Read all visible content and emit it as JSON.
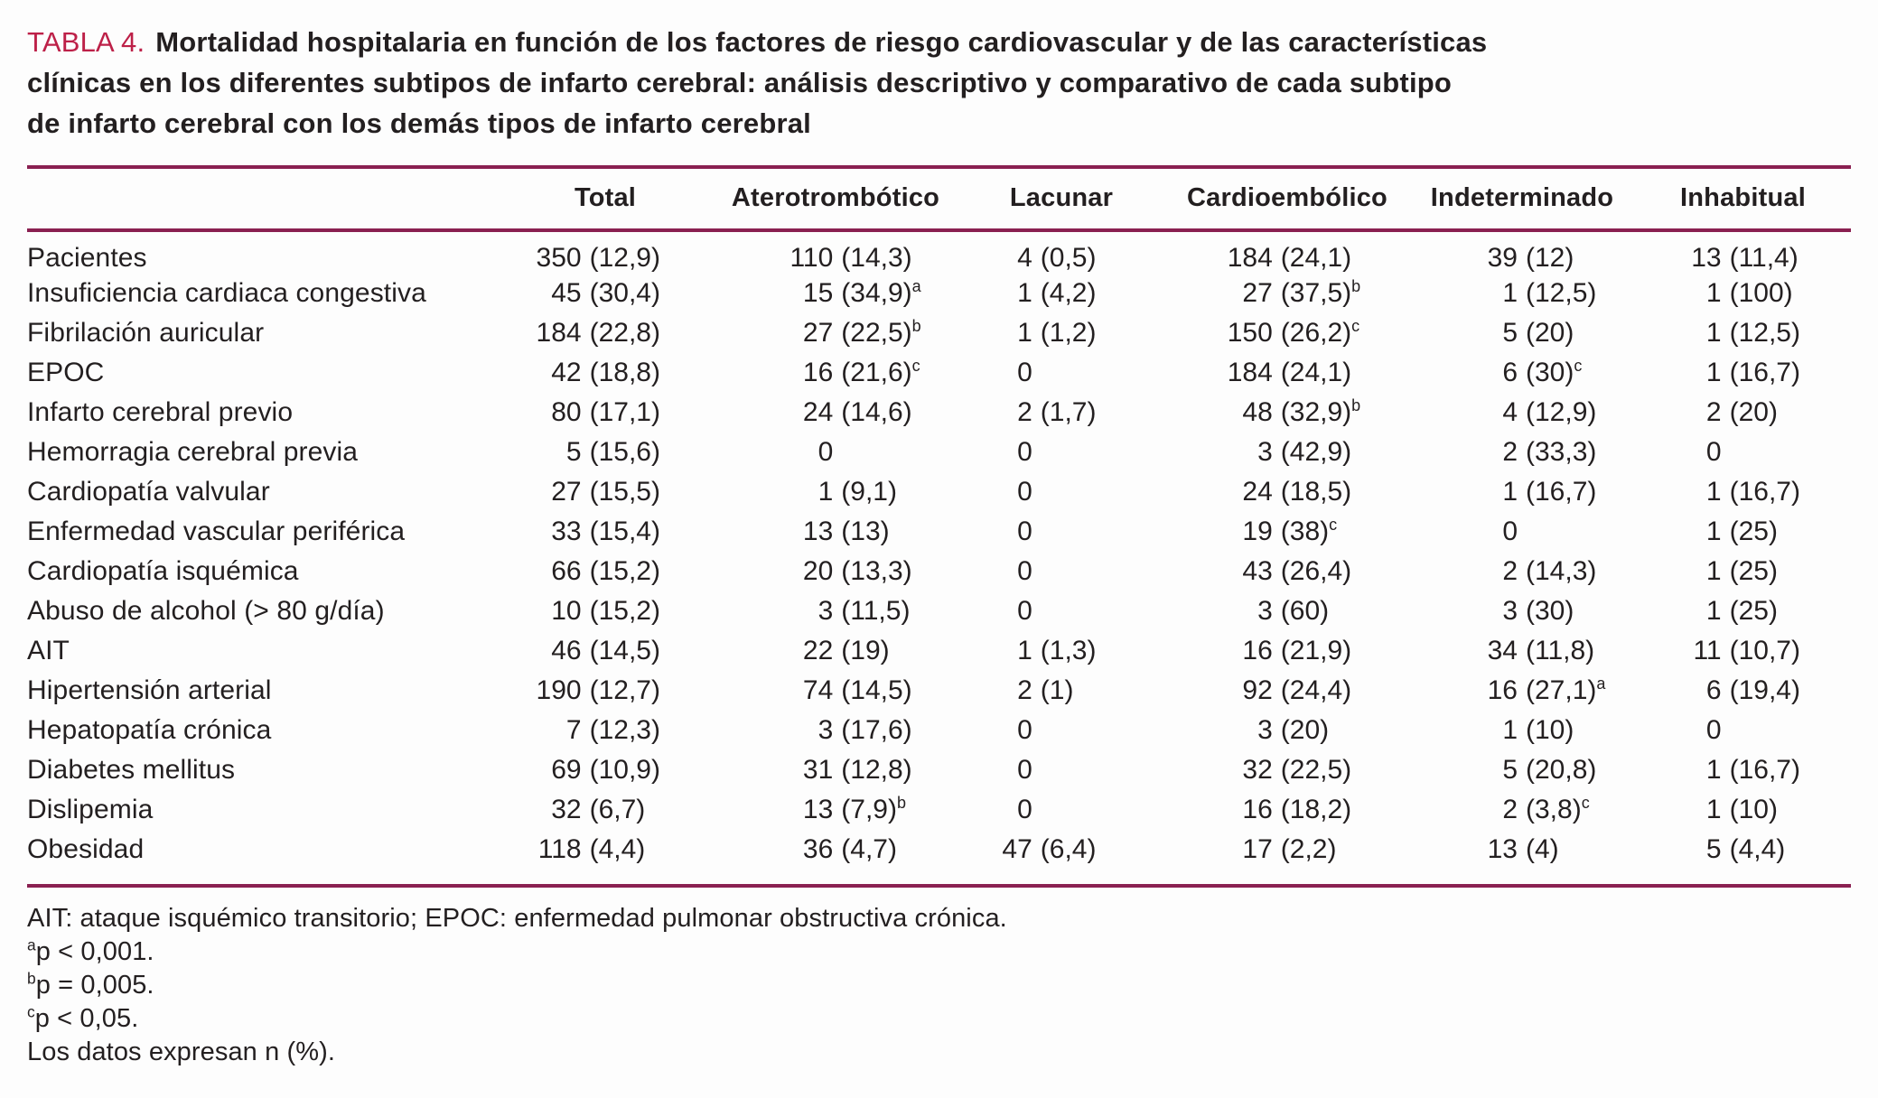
{
  "title": {
    "label": "TABLA 4.",
    "lines": [
      "Mortalidad hospitalaria en función de los factores de riesgo cardiovascular y de las características",
      "clínicas en los diferentes subtipos de infarto cerebral: análisis descriptivo y comparativo de cada subtipo",
      "de infarto cerebral con los demás tipos de infarto cerebral"
    ]
  },
  "colors": {
    "accent": "#bd2048",
    "rule": "#8a2051",
    "text": "#231f20"
  },
  "chart_data": {
    "type": "table",
    "columns": [
      "",
      "Total",
      "Aterotrombótico",
      "Lacunar",
      "Cardioembólico",
      "Indeterminado",
      "Inhabitual"
    ],
    "rows": [
      {
        "label": "Pacientes",
        "cells": [
          {
            "n": "350",
            "p": "(12,9)",
            "s": ""
          },
          {
            "n": "110",
            "p": "(14,3)",
            "s": ""
          },
          {
            "n": "4",
            "p": "(0,5)",
            "s": ""
          },
          {
            "n": "184",
            "p": "(24,1)",
            "s": ""
          },
          {
            "n": "39",
            "p": "(12)",
            "s": ""
          },
          {
            "n": "13",
            "p": "(11,4)",
            "s": ""
          }
        ]
      },
      {
        "label": "Insuficiencia cardiaca congestiva",
        "cells": [
          {
            "n": "45",
            "p": "(30,4)",
            "s": ""
          },
          {
            "n": "15",
            "p": "(34,9)",
            "s": "a"
          },
          {
            "n": "1",
            "p": "(4,2)",
            "s": ""
          },
          {
            "n": "27",
            "p": "(37,5)",
            "s": "b"
          },
          {
            "n": "1",
            "p": "(12,5)",
            "s": ""
          },
          {
            "n": "1",
            "p": "(100)",
            "s": ""
          }
        ]
      },
      {
        "label": "Fibrilación auricular",
        "cells": [
          {
            "n": "184",
            "p": "(22,8)",
            "s": ""
          },
          {
            "n": "27",
            "p": "(22,5)",
            "s": "b"
          },
          {
            "n": "1",
            "p": "(1,2)",
            "s": ""
          },
          {
            "n": "150",
            "p": "(26,2)",
            "s": "c"
          },
          {
            "n": "5",
            "p": "(20)",
            "s": ""
          },
          {
            "n": "1",
            "p": "(12,5)",
            "s": ""
          }
        ]
      },
      {
        "label": "EPOC",
        "cells": [
          {
            "n": "42",
            "p": "(18,8)",
            "s": ""
          },
          {
            "n": "16",
            "p": "(21,6)",
            "s": "c"
          },
          {
            "n": "0",
            "p": "",
            "s": ""
          },
          {
            "n": "184",
            "p": "(24,1)",
            "s": ""
          },
          {
            "n": "6",
            "p": "(30)",
            "s": "c"
          },
          {
            "n": "1",
            "p": "(16,7)",
            "s": ""
          }
        ]
      },
      {
        "label": "Infarto cerebral previo",
        "cells": [
          {
            "n": "80",
            "p": "(17,1)",
            "s": ""
          },
          {
            "n": "24",
            "p": "(14,6)",
            "s": ""
          },
          {
            "n": "2",
            "p": "(1,7)",
            "s": ""
          },
          {
            "n": "48",
            "p": "(32,9)",
            "s": "b"
          },
          {
            "n": "4",
            "p": "(12,9)",
            "s": ""
          },
          {
            "n": "2",
            "p": "(20)",
            "s": ""
          }
        ]
      },
      {
        "label": "Hemorragia cerebral previa",
        "cells": [
          {
            "n": "5",
            "p": "(15,6)",
            "s": ""
          },
          {
            "n": "0",
            "p": "",
            "s": ""
          },
          {
            "n": "0",
            "p": "",
            "s": ""
          },
          {
            "n": "3",
            "p": "(42,9)",
            "s": ""
          },
          {
            "n": "2",
            "p": "(33,3)",
            "s": ""
          },
          {
            "n": "0",
            "p": "",
            "s": ""
          }
        ]
      },
      {
        "label": "Cardiopatía valvular",
        "cells": [
          {
            "n": "27",
            "p": "(15,5)",
            "s": ""
          },
          {
            "n": "1",
            "p": "(9,1)",
            "s": ""
          },
          {
            "n": "0",
            "p": "",
            "s": ""
          },
          {
            "n": "24",
            "p": "(18,5)",
            "s": ""
          },
          {
            "n": "1",
            "p": "(16,7)",
            "s": ""
          },
          {
            "n": "1",
            "p": "(16,7)",
            "s": ""
          }
        ]
      },
      {
        "label": "Enfermedad vascular periférica",
        "cells": [
          {
            "n": "33",
            "p": "(15,4)",
            "s": ""
          },
          {
            "n": "13",
            "p": "(13)",
            "s": ""
          },
          {
            "n": "0",
            "p": "",
            "s": ""
          },
          {
            "n": "19",
            "p": "(38)",
            "s": "c"
          },
          {
            "n": "0",
            "p": "",
            "s": ""
          },
          {
            "n": "1",
            "p": "(25)",
            "s": ""
          }
        ]
      },
      {
        "label": "Cardiopatía isquémica",
        "cells": [
          {
            "n": "66",
            "p": "(15,2)",
            "s": ""
          },
          {
            "n": "20",
            "p": "(13,3)",
            "s": ""
          },
          {
            "n": "0",
            "p": "",
            "s": ""
          },
          {
            "n": "43",
            "p": "(26,4)",
            "s": ""
          },
          {
            "n": "2",
            "p": "(14,3)",
            "s": ""
          },
          {
            "n": "1",
            "p": "(25)",
            "s": ""
          }
        ]
      },
      {
        "label": "Abuso de alcohol (> 80 g/día)",
        "cells": [
          {
            "n": "10",
            "p": "(15,2)",
            "s": ""
          },
          {
            "n": "3",
            "p": "(11,5)",
            "s": ""
          },
          {
            "n": "0",
            "p": "",
            "s": ""
          },
          {
            "n": "3",
            "p": "(60)",
            "s": ""
          },
          {
            "n": "3",
            "p": "(30)",
            "s": ""
          },
          {
            "n": "1",
            "p": "(25)",
            "s": ""
          }
        ]
      },
      {
        "label": "AIT",
        "cells": [
          {
            "n": "46",
            "p": "(14,5)",
            "s": ""
          },
          {
            "n": "22",
            "p": "(19)",
            "s": ""
          },
          {
            "n": "1",
            "p": "(1,3)",
            "s": ""
          },
          {
            "n": "16",
            "p": "(21,9)",
            "s": ""
          },
          {
            "n": "34",
            "p": "(11,8)",
            "s": ""
          },
          {
            "n": "11",
            "p": "(10,7)",
            "s": ""
          }
        ]
      },
      {
        "label": "Hipertensión arterial",
        "cells": [
          {
            "n": "190",
            "p": "(12,7)",
            "s": ""
          },
          {
            "n": "74",
            "p": "(14,5)",
            "s": ""
          },
          {
            "n": "2",
            "p": "(1)",
            "s": ""
          },
          {
            "n": "92",
            "p": "(24,4)",
            "s": ""
          },
          {
            "n": "16",
            "p": "(27,1)",
            "s": "a"
          },
          {
            "n": "6",
            "p": "(19,4)",
            "s": ""
          }
        ]
      },
      {
        "label": "Hepatopatía crónica",
        "cells": [
          {
            "n": "7",
            "p": "(12,3)",
            "s": ""
          },
          {
            "n": "3",
            "p": "(17,6)",
            "s": ""
          },
          {
            "n": "0",
            "p": "",
            "s": ""
          },
          {
            "n": "3",
            "p": "(20)",
            "s": ""
          },
          {
            "n": "1",
            "p": "(10)",
            "s": ""
          },
          {
            "n": "0",
            "p": "",
            "s": ""
          }
        ]
      },
      {
        "label": "Diabetes mellitus",
        "cells": [
          {
            "n": "69",
            "p": "(10,9)",
            "s": ""
          },
          {
            "n": "31",
            "p": "(12,8)",
            "s": ""
          },
          {
            "n": "0",
            "p": "",
            "s": ""
          },
          {
            "n": "32",
            "p": "(22,5)",
            "s": ""
          },
          {
            "n": "5",
            "p": "(20,8)",
            "s": ""
          },
          {
            "n": "1",
            "p": "(16,7)",
            "s": ""
          }
        ]
      },
      {
        "label": "Dislipemia",
        "cells": [
          {
            "n": "32",
            "p": "(6,7)",
            "s": ""
          },
          {
            "n": "13",
            "p": "(7,9)",
            "s": "b"
          },
          {
            "n": "0",
            "p": "",
            "s": ""
          },
          {
            "n": "16",
            "p": "(18,2)",
            "s": ""
          },
          {
            "n": "2",
            "p": "(3,8)",
            "s": "c"
          },
          {
            "n": "1",
            "p": "(10)",
            "s": ""
          }
        ]
      },
      {
        "label": "Obesidad",
        "cells": [
          {
            "n": "118",
            "p": "(4,4)",
            "s": ""
          },
          {
            "n": "36",
            "p": "(4,7)",
            "s": ""
          },
          {
            "n": "47",
            "p": "(6,4)",
            "s": ""
          },
          {
            "n": "17",
            "p": "(2,2)",
            "s": ""
          },
          {
            "n": "13",
            "p": "(4)",
            "s": ""
          },
          {
            "n": "5",
            "p": "(4,4)",
            "s": ""
          }
        ]
      }
    ]
  },
  "footnotes": [
    {
      "sup": "",
      "text": "AIT: ataque isquémico transitorio; EPOC: enfermedad pulmonar obstructiva crónica."
    },
    {
      "sup": "a",
      "text": "p < 0,001."
    },
    {
      "sup": "b",
      "text": "p = 0,005."
    },
    {
      "sup": "c",
      "text": "p < 0,05."
    },
    {
      "sup": "",
      "text": "Los datos expresan n (%)."
    }
  ]
}
